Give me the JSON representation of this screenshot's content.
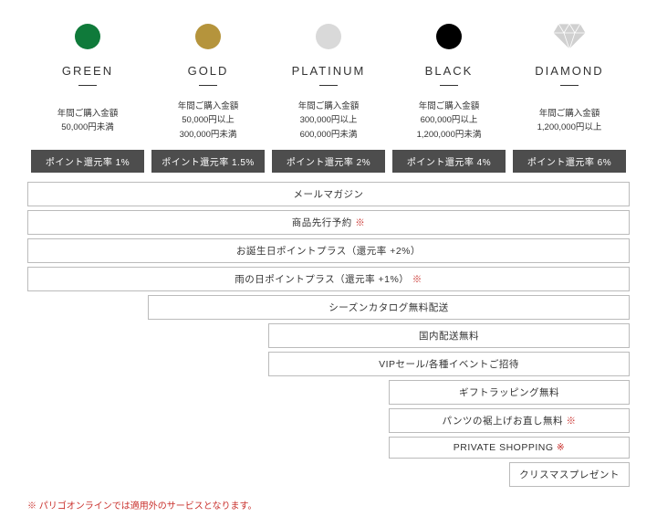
{
  "tiers": [
    {
      "name": "GREEN",
      "icon_type": "circle",
      "icon_color": "#0f7a3a",
      "cond_label": "年間ご購入金額",
      "cond_line1": "50,000円未満",
      "cond_line2": "",
      "rate": "ポイント還元率 1%"
    },
    {
      "name": "GOLD",
      "icon_type": "circle",
      "icon_color": "#b5943c",
      "cond_label": "年間ご購入金額",
      "cond_line1": "50,000円以上",
      "cond_line2": "300,000円未満",
      "rate": "ポイント還元率 1.5%"
    },
    {
      "name": "PLATINUM",
      "icon_type": "circle",
      "icon_color": "#d9d9d9",
      "cond_label": "年間ご購入金額",
      "cond_line1": "300,000円以上",
      "cond_line2": "600,000円未満",
      "rate": "ポイント還元率 2%"
    },
    {
      "name": "BLACK",
      "icon_type": "circle",
      "icon_color": "#000000",
      "cond_label": "年間ご購入金額",
      "cond_line1": "600,000円以上",
      "cond_line2": "1,200,000円未満",
      "rate": "ポイント還元率 4%"
    },
    {
      "name": "DIAMOND",
      "icon_type": "diamond",
      "icon_color": "#d0d0d0",
      "cond_label": "年間ご購入金額",
      "cond_line1": "1,200,000円以上",
      "cond_line2": "",
      "rate": "ポイント還元率 6%"
    }
  ],
  "benefits": [
    {
      "label": "メールマガジン",
      "note": false,
      "start": 1
    },
    {
      "label": "商品先行予約",
      "note": true,
      "start": 1
    },
    {
      "label": "お誕生日ポイントプラス（還元率 +2%）",
      "note": false,
      "start": 1
    },
    {
      "label": "雨の日ポイントプラス（還元率 +1%）",
      "note": true,
      "start": 1
    },
    {
      "label": "シーズンカタログ無料配送",
      "note": false,
      "start": 2
    },
    {
      "label": "国内配送無料",
      "note": false,
      "start": 3
    },
    {
      "label": "VIPセール/各種イベントご招待",
      "note": false,
      "start": 3
    },
    {
      "label": "ギフトラッピング無料",
      "note": false,
      "start": 4
    },
    {
      "label": "パンツの裾上げお直し無料",
      "note": true,
      "start": 4
    },
    {
      "label": "PRIVATE SHOPPING",
      "note": true,
      "start": 4
    },
    {
      "label": "クリスマスプレゼント",
      "note": false,
      "start": 5
    }
  ],
  "footnote": "※ パリゴオンラインでは適用外のサービスとなります。",
  "note_symbol": "※",
  "colors": {
    "bar_bg": "#4d4d4d",
    "border": "#bbbbbb",
    "note_color": "#c9302c"
  }
}
